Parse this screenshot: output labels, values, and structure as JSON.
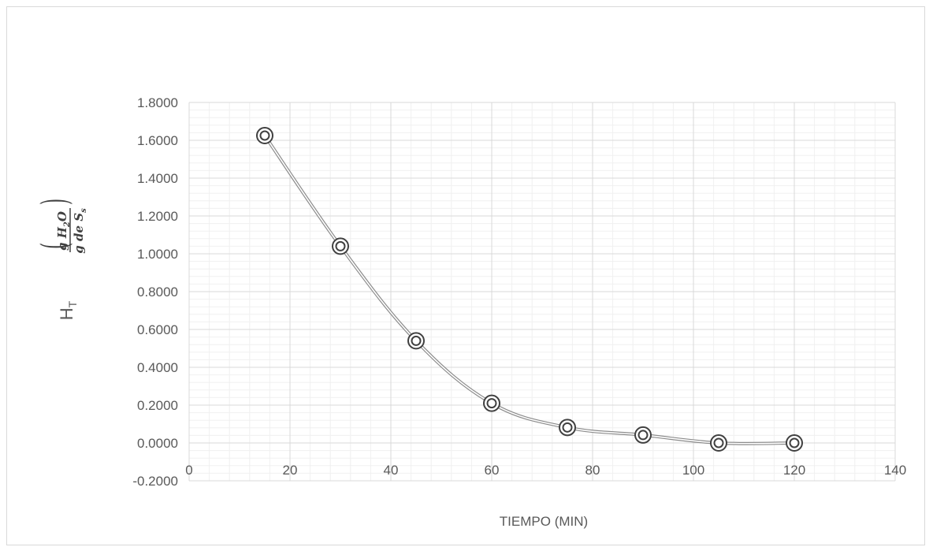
{
  "chart_data": {
    "type": "scatter",
    "title": "",
    "xlabel": "TIEMPO (MIN)",
    "ylabel": "H",
    "ylabel_subscript": "T",
    "ylabel_fraction": {
      "numerator": "g H",
      "numerator_sub": "2",
      "numerator_rest": "O",
      "denominator": "g de S",
      "denominator_sub": "s"
    },
    "xlim": [
      0,
      140
    ],
    "ylim": [
      -0.2,
      1.8
    ],
    "x_ticks": [
      "0",
      "20",
      "40",
      "60",
      "80",
      "100",
      "120",
      "140"
    ],
    "y_ticks": [
      "-0.2000",
      "0.0000",
      "0.2000",
      "0.4000",
      "0.6000",
      "0.8000",
      "1.0000",
      "1.2000",
      "1.4000",
      "1.6000",
      "1.8000"
    ],
    "grid": true,
    "minor_grid": true,
    "legend": false,
    "series": [
      {
        "smooth_line": true,
        "line_color": "#a6a6a6",
        "marker_color": "#404040",
        "x": [
          15,
          30,
          45,
          60,
          75,
          90,
          105,
          120
        ],
        "y": [
          1.625,
          1.04,
          0.54,
          0.21,
          0.082,
          0.042,
          0.0,
          0.0
        ]
      }
    ]
  }
}
